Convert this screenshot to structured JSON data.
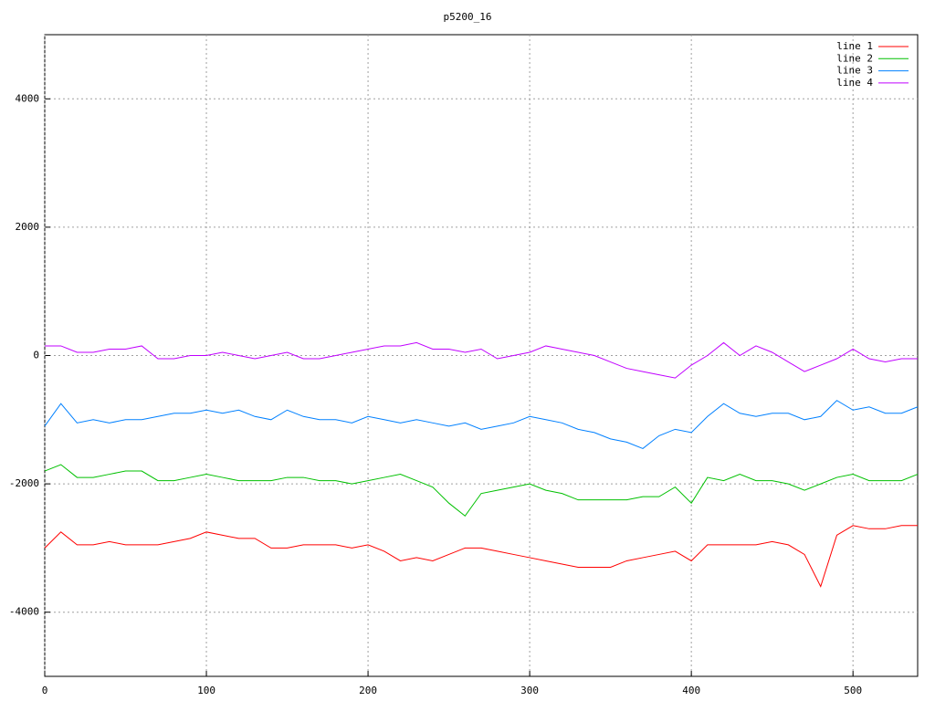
{
  "chart_data": {
    "type": "line",
    "title": "p5200_16",
    "x": [
      0,
      10,
      20,
      30,
      40,
      50,
      60,
      70,
      80,
      90,
      100,
      110,
      120,
      130,
      140,
      150,
      160,
      170,
      180,
      190,
      200,
      210,
      220,
      230,
      240,
      250,
      260,
      270,
      280,
      290,
      300,
      310,
      320,
      330,
      340,
      350,
      360,
      370,
      380,
      390,
      400,
      410,
      420,
      430,
      440,
      450,
      460,
      470,
      480,
      490,
      500,
      510,
      520,
      530,
      540
    ],
    "series": [
      {
        "name": "line 1",
        "color": "#ff0000",
        "values": [
          -3000,
          -2750,
          -2950,
          -2950,
          -2900,
          -2950,
          -2950,
          -2950,
          -2900,
          -2850,
          -2750,
          -2800,
          -2850,
          -2850,
          -3000,
          -3000,
          -2950,
          -2950,
          -2950,
          -3000,
          -2950,
          -3050,
          -3200,
          -3150,
          -3200,
          -3100,
          -3000,
          -3000,
          -3050,
          -3100,
          -3150,
          -3200,
          -3250,
          -3300,
          -3300,
          -3300,
          -3200,
          -3150,
          -3100,
          -3050,
          -3200,
          -2950,
          -2950,
          -2950,
          -2950,
          -2900,
          -2950,
          -3100,
          -3600,
          -2800,
          -2650,
          -2700,
          -2700,
          -2650,
          -2650
        ]
      },
      {
        "name": "line 2",
        "color": "#00c000",
        "values": [
          -1800,
          -1700,
          -1900,
          -1900,
          -1850,
          -1800,
          -1800,
          -1950,
          -1950,
          -1900,
          -1850,
          -1900,
          -1950,
          -1950,
          -1950,
          -1900,
          -1900,
          -1950,
          -1950,
          -2000,
          -1950,
          -1900,
          -1850,
          -1950,
          -2050,
          -2300,
          -2500,
          -2150,
          -2100,
          -2050,
          -2000,
          -2100,
          -2150,
          -2250,
          -2250,
          -2250,
          -2250,
          -2200,
          -2200,
          -2050,
          -2300,
          -1900,
          -1950,
          -1850,
          -1950,
          -1950,
          -2000,
          -2100,
          -2000,
          -1900,
          -1850,
          -1950,
          -1950,
          -1950,
          -1850
        ]
      },
      {
        "name": "line 3",
        "color": "#0080ff",
        "values": [
          -1100,
          -750,
          -1050,
          -1000,
          -1050,
          -1000,
          -1000,
          -950,
          -900,
          -900,
          -850,
          -900,
          -850,
          -950,
          -1000,
          -850,
          -950,
          -1000,
          -1000,
          -1050,
          -950,
          -1000,
          -1050,
          -1000,
          -1050,
          -1100,
          -1050,
          -1150,
          -1100,
          -1050,
          -950,
          -1000,
          -1050,
          -1150,
          -1200,
          -1300,
          -1350,
          -1450,
          -1250,
          -1150,
          -1200,
          -950,
          -750,
          -900,
          -950,
          -900,
          -900,
          -1000,
          -950,
          -700,
          -850,
          -800,
          -900,
          -900,
          -800
        ]
      },
      {
        "name": "line 4",
        "color": "#c000ff",
        "values": [
          150,
          150,
          50,
          50,
          100,
          100,
          150,
          -50,
          -50,
          0,
          0,
          50,
          0,
          -50,
          0,
          50,
          -50,
          -50,
          0,
          50,
          100,
          150,
          150,
          200,
          100,
          100,
          50,
          100,
          -50,
          0,
          50,
          150,
          100,
          50,
          0,
          -100,
          -200,
          -250,
          -300,
          -350,
          -150,
          0,
          200,
          0,
          150,
          50,
          -100,
          -250,
          -150,
          -50,
          100,
          -50,
          -100,
          -50,
          -50
        ]
      }
    ],
    "xlim": [
      0,
      540
    ],
    "ylim": [
      -5000,
      5000
    ],
    "xticks": [
      0,
      100,
      200,
      300,
      400,
      500
    ],
    "yticks": [
      -4000,
      -2000,
      0,
      2000,
      4000
    ],
    "grid": true,
    "legend": "top-right"
  }
}
